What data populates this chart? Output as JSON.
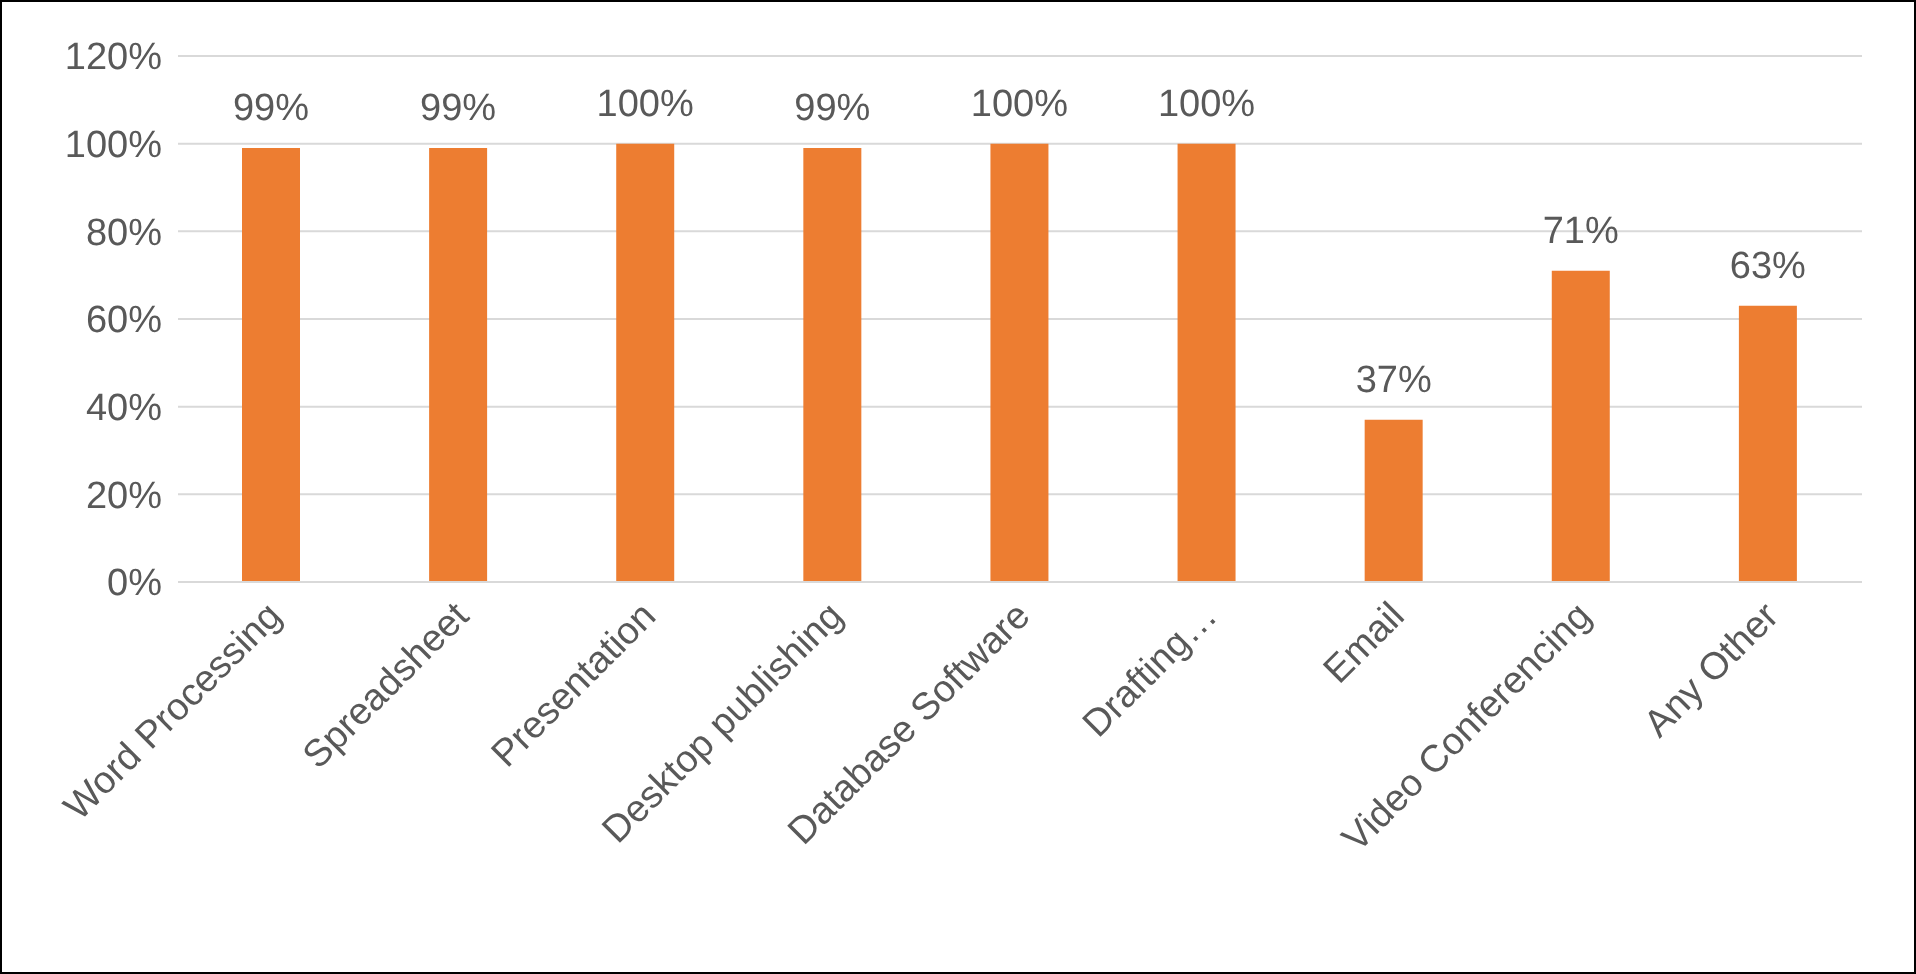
{
  "chart_data": {
    "type": "bar",
    "categories": [
      "Word Processing",
      "Spreadsheet",
      "Presentation",
      "Desktop publishing",
      "Database Software",
      "Drafting…",
      "Email",
      "Video Conferencing",
      "Any Other"
    ],
    "values": [
      99,
      99,
      100,
      99,
      100,
      100,
      37,
      71,
      63
    ],
    "value_labels": [
      "99%",
      "99%",
      "100%",
      "99%",
      "100%",
      "100%",
      "37%",
      "71%",
      "63%"
    ],
    "color": "#ed7d31",
    "ylim": [
      0,
      120
    ],
    "yticks": [
      {
        "value": 0,
        "label": "0%"
      },
      {
        "value": 20,
        "label": "20%"
      },
      {
        "value": 40,
        "label": "40%"
      },
      {
        "value": 60,
        "label": "60%"
      },
      {
        "value": 80,
        "label": "80%"
      },
      {
        "value": 100,
        "label": "100%"
      },
      {
        "value": 120,
        "label": "120%"
      }
    ],
    "grid": "y",
    "legend": false
  }
}
